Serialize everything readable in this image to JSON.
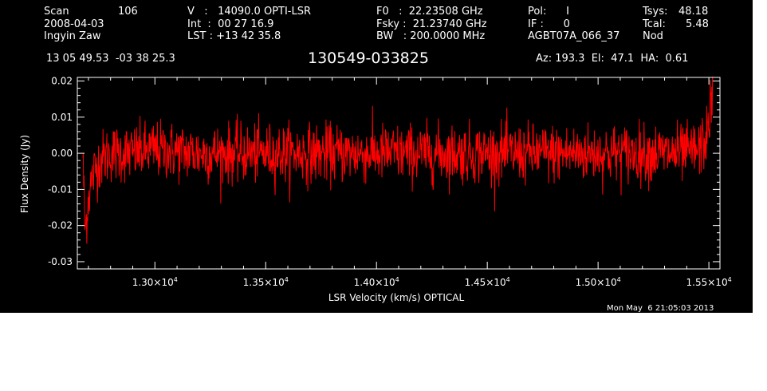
{
  "header": {
    "scan_label": "Scan",
    "scan_value": "106",
    "date": "2008-04-03",
    "observer": "Ingyin Zaw",
    "v_line": "V   :   14090.0 OPTI-LSR",
    "int_line": "Int  :  00 27 16.9",
    "lst_line": "LST : +13 42 35.8",
    "f0_line": "F0   :  22.23508 GHz",
    "fsky_line": "Fsky :  21.23740 GHz",
    "bw_line": "BW   : 200.0000 MHz",
    "pol_line": "Pol:      I",
    "if_line": "IF :      0",
    "project": "AGBT07A_066_37",
    "tsys_label": "Tsys:",
    "tsys_value": "48.18",
    "tcal_label": "Tcal:",
    "tcal_value": "5.48",
    "mode": "Nod",
    "coords": "13 05 49.53  -03 38 25.3",
    "source": "130549-033825",
    "az_el_ha": "Az: 193.3  El:  47.1  HA:  0.61"
  },
  "footer": {
    "timestamp": "Mon May  6 21:05:03 2013"
  },
  "colors": {
    "background": "#000000",
    "axes": "#ffffff",
    "series": "#ff0000"
  },
  "chart_data": {
    "type": "line",
    "title": "130549-033825",
    "xlabel": "LSR Velocity (km/s) OPTICAL",
    "ylabel": "Flux Density (Jy)",
    "xlim": [
      12650,
      15550
    ],
    "ylim": [
      -0.032,
      0.021
    ],
    "x_ticks": [
      13000,
      13500,
      14000,
      14500,
      15000,
      15500
    ],
    "x_tick_labels": [
      {
        "mantissa": "1.30",
        "exp": "4"
      },
      {
        "mantissa": "1.35",
        "exp": "4"
      },
      {
        "mantissa": "1.40",
        "exp": "4"
      },
      {
        "mantissa": "1.45",
        "exp": "4"
      },
      {
        "mantissa": "1.50",
        "exp": "4"
      },
      {
        "mantissa": "1.55",
        "exp": "4"
      }
    ],
    "y_ticks": [
      -0.03,
      -0.02,
      -0.01,
      0.0,
      0.01,
      0.02
    ],
    "y_tick_labels": [
      "-0.03",
      "-0.02",
      "-0.01",
      "0.00",
      "0.01",
      "0.02"
    ],
    "grid": false,
    "series": [
      {
        "color": "#ff0000",
        "x": [
          12675,
          12685,
          12700,
          12720,
          12750,
          12800,
          12900,
          13000,
          13200,
          13400,
          13600,
          13800,
          14000,
          14200,
          14400,
          14600,
          14800,
          15000,
          15200,
          15400,
          15450,
          15480,
          15500,
          15510,
          15520
        ],
        "y": [
          0.0,
          -0.022,
          -0.012,
          -0.006,
          -0.002,
          0.0,
          0.0,
          0.001,
          0.0,
          0.0,
          0.0,
          0.0,
          0.0,
          0.0,
          0.0,
          0.0,
          0.0,
          0.0,
          0.0,
          0.0,
          0.001,
          0.003,
          0.008,
          0.014,
          0.019
        ],
        "noise_rms": 0.004
      }
    ]
  }
}
